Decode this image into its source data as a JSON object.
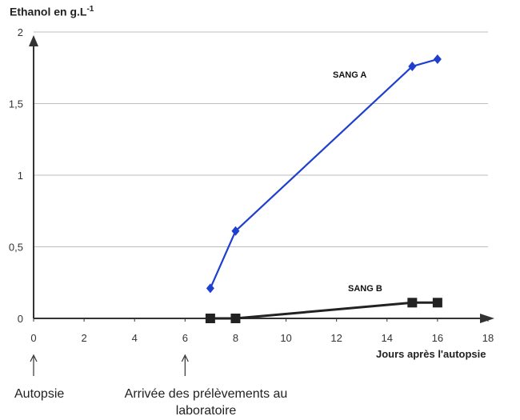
{
  "chart_data": {
    "type": "line",
    "ylabel": "Ethanol en g.L",
    "ylabel_sup": "-1",
    "xlabel": "Jours après l'autopsie",
    "xlim": [
      0,
      18
    ],
    "ylim": [
      0,
      2
    ],
    "x_ticks": [
      "0",
      "2",
      "4",
      "6",
      "8",
      "10",
      "12",
      "14",
      "16",
      "18"
    ],
    "y_ticks": [
      "0",
      "0,5",
      "1",
      "1,5",
      "2"
    ],
    "grid": "horizontal",
    "series": [
      {
        "name": "SANG A",
        "color": "#1f3fcf",
        "marker": "diamond",
        "x": [
          7,
          8,
          15,
          16
        ],
        "y": [
          0.21,
          0.61,
          1.76,
          1.81
        ]
      },
      {
        "name": "SANG B",
        "color": "#222222",
        "marker": "square",
        "x": [
          7,
          8,
          15,
          16
        ],
        "y": [
          0.0,
          0.0,
          0.11,
          0.11
        ]
      }
    ],
    "annotations": [
      {
        "text": "Autopsie",
        "x": 0
      },
      {
        "text": "Arrivée des prélèvements au laboratoire",
        "x": 6
      }
    ]
  }
}
